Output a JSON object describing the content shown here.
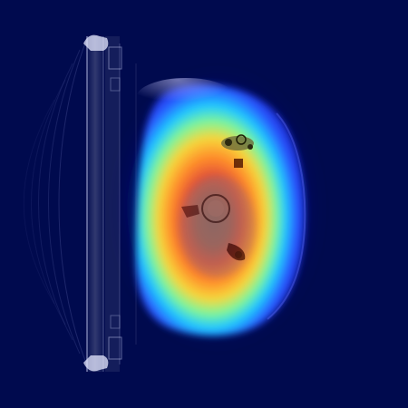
{
  "view": {
    "kind": "ct-scan-heatmap-overlay",
    "background_color": "#000a4e",
    "colormap": "jet",
    "colormap_stops": [
      "#000a4e",
      "#1a2fff",
      "#00a8ff",
      "#31ffd0",
      "#c7ff3a",
      "#ffb000",
      "#ff3a1a",
      "#a00000"
    ],
    "tissue_tint": "#8a7a78"
  }
}
